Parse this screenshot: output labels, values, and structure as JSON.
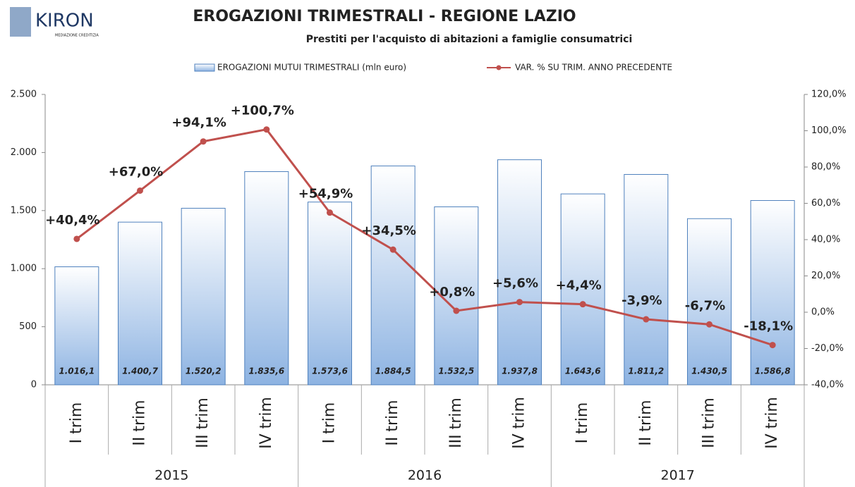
{
  "logo": {
    "name": "KIRON",
    "tagline": "MEDIAZIONE CREDITIZIA"
  },
  "chart_data": {
    "type": "bar",
    "title": "EROGAZIONI TRIMESTRALI - REGIONE LAZIO",
    "subtitle": "Prestiti per l'acquisto di abitazioni a famiglie consumatrici",
    "categories": [
      "I trim",
      "II trim",
      "III trim",
      "IV trim",
      "I trim",
      "II trim",
      "III trim",
      "IV trim",
      "I trim",
      "II trim",
      "III trim",
      "IV trim"
    ],
    "year_labels": [
      "2015",
      "2016",
      "2017"
    ],
    "series": [
      {
        "name": "EROGAZIONI MUTUI TRIMESTRALI (mln euro)",
        "color": "#4f81bd",
        "type": "bar",
        "values": [
          1016.1,
          1400.7,
          1520.2,
          1835.6,
          1573.6,
          1884.5,
          1532.5,
          1937.8,
          1643.6,
          1811.2,
          1430.5,
          1586.8
        ],
        "value_labels": [
          "1.016,1",
          "1.400,7",
          "1.520,2",
          "1.835,6",
          "1.573,6",
          "1.884,5",
          "1.532,5",
          "1.937,8",
          "1.643,6",
          "1.811,2",
          "1.430,5",
          "1.586,8"
        ]
      },
      {
        "name": "VAR. % SU TRIM. ANNO PRECEDENTE",
        "color": "#c0504d",
        "type": "line",
        "axis": "y2",
        "values": [
          40.4,
          67.0,
          94.1,
          100.7,
          54.9,
          34.5,
          0.8,
          5.6,
          4.4,
          -3.9,
          -6.7,
          -18.1
        ],
        "value_labels": [
          "+40,4%",
          "+67,0%",
          "+94,1%",
          "+100,7%",
          "+54,9%",
          "+34,5%",
          "+0,8%",
          "+5,6%",
          "+4,4%",
          "-3,9%",
          "-6,7%",
          "-18,1%"
        ]
      }
    ],
    "ylim": [
      0,
      2500
    ],
    "yticks": [
      0,
      500,
      {
        "value": 1000,
        "label": "1.000"
      },
      {
        "value": 1500,
        "label": "1.500"
      },
      {
        "value": 2000,
        "label": "2.000"
      },
      {
        "value": 2500,
        "label": "2.500"
      }
    ],
    "y2lim": [
      -40,
      120
    ],
    "y2ticks": [
      {
        "value": -40,
        "label": "-40,0%"
      },
      {
        "value": -20,
        "label": "-20,0%"
      },
      {
        "value": 0,
        "label": "0,0%"
      },
      {
        "value": 20,
        "label": "20,0%"
      },
      {
        "value": 40,
        "label": "40,0%"
      },
      {
        "value": 60,
        "label": "60,0%"
      },
      {
        "value": 80,
        "label": "80,0%"
      },
      {
        "value": 100,
        "label": "100,0%"
      },
      {
        "value": 120,
        "label": "120,0%"
      }
    ],
    "legend": "top"
  }
}
